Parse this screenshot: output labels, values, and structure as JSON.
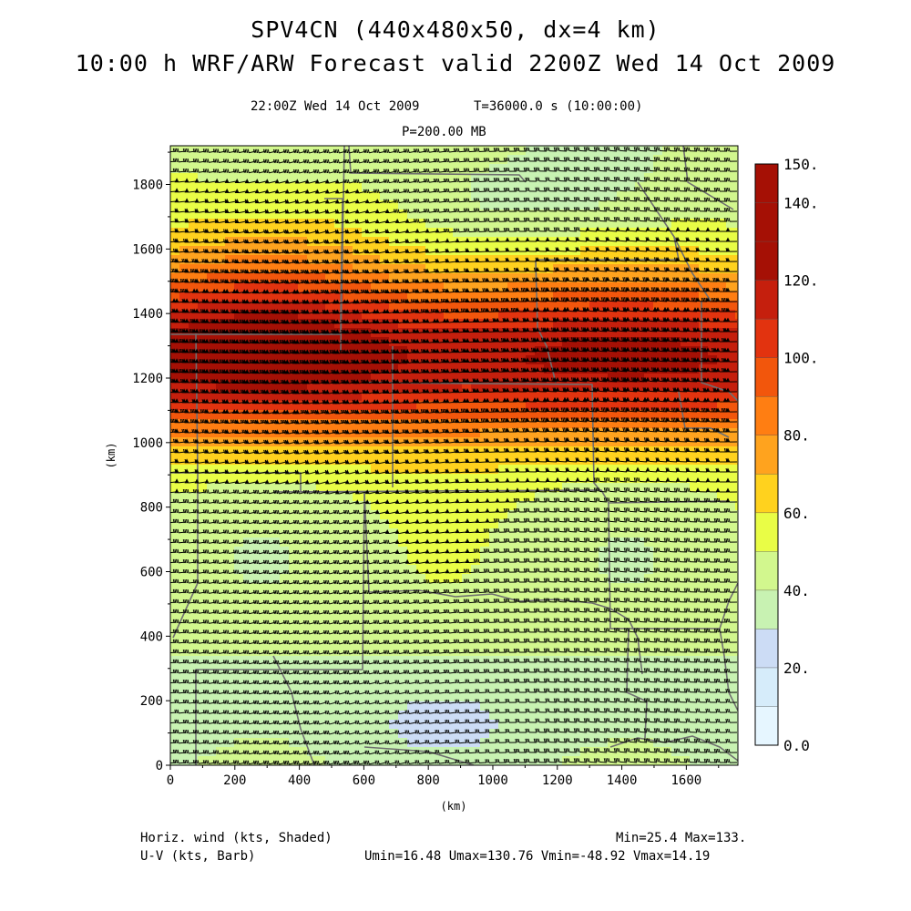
{
  "header": {
    "title": "SPV4CN (440x480x50, dx=4 km)",
    "subtitle": "10:00 h WRF/ARW Forecast valid 2200Z Wed 14 Oct 2009",
    "time_label": "22:00Z Wed 14 Oct 2009",
    "time_seconds": "T=36000.0 s (10:00:00)",
    "level": "P=200.00 MB"
  },
  "axes": {
    "x_label": "(km)",
    "y_label": "(km)",
    "x_ticks": [
      "0",
      "200",
      "400",
      "600",
      "800",
      "1000",
      "1200",
      "1400",
      "1600"
    ],
    "y_ticks": [
      "0",
      "200",
      "400",
      "600",
      "800",
      "1000",
      "1200",
      "1400",
      "1600",
      "1800"
    ]
  },
  "colorbar": {
    "labels": [
      "0.0",
      "20.",
      "40.",
      "60.",
      "80.",
      "100.",
      "120.",
      "140.",
      "150."
    ],
    "colors": [
      "#e6f6ff",
      "#d6ecfa",
      "#ccdcf5",
      "#c8f2b2",
      "#d2f78e",
      "#e9fd46",
      "#ffd21e",
      "#ffa31e",
      "#ff7e12",
      "#f2560c",
      "#e2330f",
      "#c51f0d",
      "#a51005"
    ]
  },
  "footer": {
    "left_line1": "Horiz. wind (kts, Shaded)",
    "left_line2": "U-V (kts, Barb)",
    "right_line1": "Min=25.4 Max=133.",
    "right_line2": "Umin=16.48 Umax=130.76 Vmin=-48.92 Vmax=14.19"
  },
  "map": {
    "field": "Horizontal wind speed (kts)",
    "min": 25.4,
    "max": 133,
    "jet_core_band_km": [
      900,
      1500
    ],
    "barb_color": "#000000",
    "boundary_color": "#707070"
  }
}
